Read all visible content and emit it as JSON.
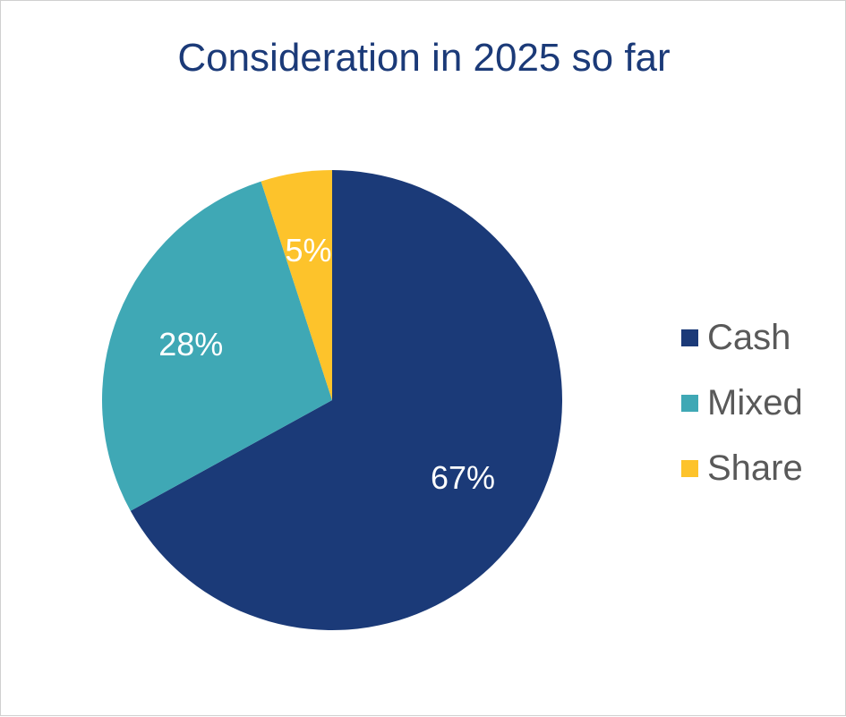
{
  "chart_data": {
    "type": "pie",
    "title": "Consideration in 2025 so far",
    "categories": [
      "Cash",
      "Mixed",
      "Share"
    ],
    "values": [
      67,
      28,
      5
    ],
    "labels": [
      "67%",
      "28%",
      "5%"
    ],
    "colors": [
      "#1b3a78",
      "#3fa8b5",
      "#fdc32b"
    ],
    "legend_position": "right"
  }
}
